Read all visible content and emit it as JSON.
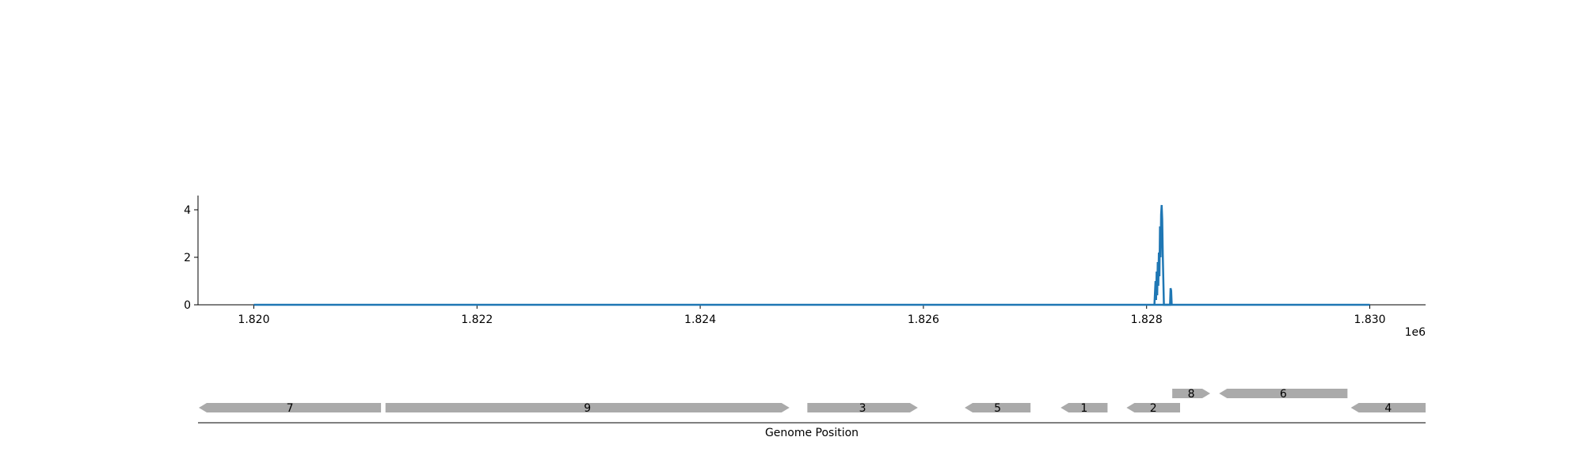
{
  "chart_data": [
    {
      "type": "line",
      "title": "",
      "xlabel": "",
      "ylabel": "",
      "xlim": [
        1819500,
        1830500
      ],
      "ylim": [
        0,
        4.6
      ],
      "x_offset_label": "1e6",
      "x_ticks": [
        {
          "value": 1820000,
          "label": "1.820"
        },
        {
          "value": 1822000,
          "label": "1.822"
        },
        {
          "value": 1824000,
          "label": "1.824"
        },
        {
          "value": 1826000,
          "label": "1.826"
        },
        {
          "value": 1828000,
          "label": "1.828"
        },
        {
          "value": 1830000,
          "label": "1.830"
        }
      ],
      "y_ticks": [
        {
          "value": 0,
          "label": "0"
        },
        {
          "value": 2,
          "label": "2"
        },
        {
          "value": 4,
          "label": "4"
        }
      ],
      "color": "#1f77b4",
      "baseline": {
        "x": [
          1820000,
          1830000
        ],
        "y": 0
      },
      "series": [
        {
          "x": [
            1828070,
            1828080,
            1828085,
            1828090,
            1828095,
            1828100,
            1828105,
            1828110,
            1828115,
            1828120,
            1828125,
            1828130,
            1828135,
            1828140,
            1828145,
            1828155,
            1828160,
            1828170,
            1828210,
            1828215,
            1828220,
            1828225
          ],
          "y": [
            0,
            1.0,
            0.2,
            1.4,
            0.4,
            1.8,
            0.8,
            2.2,
            1.2,
            3.3,
            2.0,
            3.8,
            4.2,
            3.6,
            2.1,
            0,
            0,
            0,
            0,
            0.7,
            0.6,
            0
          ]
        }
      ],
      "grid": false,
      "legend": false
    },
    {
      "type": "gene-track",
      "xlabel": "Genome Position",
      "genes": [
        {
          "label": "7",
          "start": 1819500,
          "end": 1821140,
          "strand": "-",
          "row": 0
        },
        {
          "label": "9",
          "start": 1821180,
          "end": 1824800,
          "strand": "+",
          "row": 0
        },
        {
          "label": "3",
          "start": 1824960,
          "end": 1825950,
          "strand": "+",
          "row": 0
        },
        {
          "label": "5",
          "start": 1826370,
          "end": 1826960,
          "strand": "-",
          "row": 0
        },
        {
          "label": "1",
          "start": 1827230,
          "end": 1827650,
          "strand": "-",
          "row": 0
        },
        {
          "label": "2",
          "start": 1827820,
          "end": 1828300,
          "strand": "-",
          "row": 0
        },
        {
          "label": "8",
          "start": 1828230,
          "end": 1828570,
          "strand": "+",
          "row": 1
        },
        {
          "label": "6",
          "start": 1828650,
          "end": 1829800,
          "strand": "-",
          "row": 1
        },
        {
          "label": "4",
          "start": 1829830,
          "end": 1830500,
          "strand": "-",
          "row": 0
        }
      ],
      "gene_color": "#aaaaaa"
    }
  ]
}
